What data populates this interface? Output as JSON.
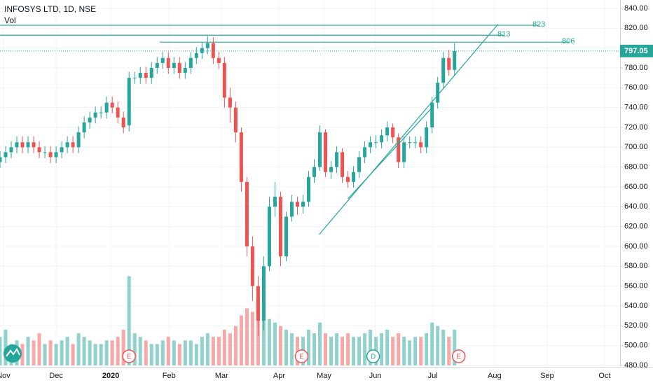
{
  "chart_data": {
    "type": "candlestick",
    "title": "INFOSYS LTD, 1D, NSE",
    "volume_label": "Vol",
    "up_color": "#26a69a",
    "down_color": "#ef5350",
    "grid": true,
    "xlim": [
      0,
      221
    ],
    "ylim": [
      480,
      840
    ],
    "y2lim": [
      0,
      100
    ],
    "xticks": [
      {
        "value": 1.25,
        "label": "Nov"
      },
      {
        "value": 20,
        "label": "Dec"
      },
      {
        "value": 39.5,
        "label": "2020"
      },
      {
        "value": 60.25,
        "label": "Feb"
      },
      {
        "value": 79,
        "label": "Mar"
      },
      {
        "value": 99.5,
        "label": "Apr"
      },
      {
        "value": 115.5,
        "label": "May"
      },
      {
        "value": 133.75,
        "label": "Jun"
      },
      {
        "value": 154.25,
        "label": "Jul"
      },
      {
        "value": 176.25,
        "label": "Aug"
      },
      {
        "value": 195,
        "label": "Sep"
      },
      {
        "value": 215.5,
        "label": "Oct"
      }
    ],
    "yticks": [
      {
        "value": 480,
        "label": "480.00"
      },
      {
        "value": 500,
        "label": "500.00"
      },
      {
        "value": 520,
        "label": "520.00"
      },
      {
        "value": 540,
        "label": "540.00"
      },
      {
        "value": 560,
        "label": "560.00"
      },
      {
        "value": 580,
        "label": "580.00"
      },
      {
        "value": 600,
        "label": "600.00"
      },
      {
        "value": 620,
        "label": "620.00"
      },
      {
        "value": 640,
        "label": "640.00"
      },
      {
        "value": 660,
        "label": "660.00"
      },
      {
        "value": 680,
        "label": "680.00"
      },
      {
        "value": 700,
        "label": "700.00"
      },
      {
        "value": 720,
        "label": "720.00"
      },
      {
        "value": 740,
        "label": "740.00"
      },
      {
        "value": 760,
        "label": "760.00"
      },
      {
        "value": 780,
        "label": "780.00"
      },
      {
        "value": 800,
        "label": "800.00"
      },
      {
        "value": 820,
        "label": "820.00"
      },
      {
        "value": 840,
        "label": "840.00"
      }
    ],
    "x": [
      0,
      2,
      4,
      6,
      8,
      10,
      12,
      14,
      16,
      18,
      20,
      22,
      24,
      26,
      28,
      30,
      32,
      34,
      36,
      38,
      40,
      42,
      44,
      46,
      48,
      50,
      52,
      54,
      56,
      58,
      60,
      62,
      64,
      66,
      68,
      70,
      72,
      74,
      76,
      78,
      80,
      82,
      84,
      86,
      88,
      90,
      92,
      94,
      96,
      98,
      100,
      102,
      104,
      106,
      108,
      110,
      112,
      114,
      116,
      118,
      120,
      122,
      124,
      126,
      128,
      130,
      132,
      134,
      136,
      138,
      140,
      142,
      144,
      146,
      148,
      150,
      152,
      154,
      156,
      158,
      160,
      162
    ],
    "open": [
      685,
      690,
      695,
      700,
      705,
      700,
      705,
      700,
      695,
      695,
      690,
      695,
      700,
      705,
      700,
      715,
      725,
      730,
      735,
      735,
      745,
      740,
      730,
      722,
      770,
      770,
      775,
      770,
      780,
      785,
      790,
      780,
      785,
      775,
      780,
      790,
      795,
      800,
      805,
      790,
      785,
      750,
      740,
      715,
      665,
      600,
      560,
      525,
      580,
      640,
      650,
      590,
      630,
      645,
      640,
      645,
      670,
      680,
      715,
      675,
      680,
      695,
      670,
      665,
      675,
      690,
      700,
      705,
      705,
      712,
      720,
      710,
      685,
      705,
      705,
      705,
      700,
      720,
      745,
      765,
      790,
      778
    ],
    "high": [
      696,
      701,
      706,
      711,
      711,
      711,
      711,
      706,
      701,
      701,
      701,
      706,
      711,
      711,
      721,
      731,
      736,
      741,
      741,
      751,
      751,
      746,
      736,
      776,
      776,
      781,
      781,
      786,
      791,
      796,
      796,
      791,
      791,
      786,
      796,
      801,
      806,
      812,
      811,
      796,
      791,
      760,
      746,
      720,
      670,
      610,
      570,
      590,
      650,
      665,
      655,
      635,
      652,
      650,
      652,
      676,
      688,
      722,
      718,
      686,
      701,
      699,
      676,
      681,
      696,
      706,
      711,
      712,
      718,
      726,
      724,
      714,
      711,
      711,
      711,
      711,
      726,
      751,
      771,
      796,
      798,
      805
    ],
    "low": [
      679,
      684,
      689,
      694,
      694,
      694,
      694,
      689,
      689,
      684,
      684,
      689,
      694,
      694,
      694,
      709,
      719,
      724,
      729,
      729,
      734,
      724,
      714,
      716,
      764,
      764,
      764,
      764,
      774,
      779,
      774,
      774,
      769,
      769,
      774,
      784,
      789,
      794,
      784,
      779,
      740,
      725,
      705,
      655,
      590,
      545,
      510,
      515,
      575,
      630,
      580,
      585,
      625,
      632,
      633,
      640,
      664,
      676,
      670,
      668,
      674,
      664,
      659,
      659,
      669,
      684,
      694,
      699,
      699,
      706,
      704,
      679,
      679,
      699,
      699,
      694,
      694,
      714,
      739,
      759,
      772,
      772
    ],
    "close": [
      690,
      695,
      700,
      705,
      700,
      705,
      700,
      695,
      695,
      690,
      695,
      700,
      705,
      700,
      715,
      725,
      730,
      735,
      735,
      745,
      740,
      730,
      720,
      770,
      770,
      775,
      770,
      780,
      785,
      790,
      780,
      785,
      775,
      780,
      790,
      795,
      800,
      805,
      790,
      785,
      750,
      740,
      715,
      665,
      600,
      560,
      525,
      580,
      640,
      650,
      590,
      630,
      645,
      640,
      645,
      670,
      680,
      715,
      675,
      680,
      695,
      670,
      665,
      675,
      690,
      700,
      705,
      705,
      712,
      720,
      710,
      685,
      705,
      705,
      705,
      700,
      720,
      745,
      765,
      790,
      778,
      797.05
    ],
    "volume": [
      8,
      10,
      6,
      7,
      6,
      8,
      7,
      9,
      6,
      7,
      6,
      7,
      8,
      6,
      9,
      8,
      7,
      6,
      6,
      7,
      7,
      8,
      10,
      25,
      9,
      8,
      7,
      6,
      6,
      7,
      8,
      7,
      6,
      7,
      7,
      6,
      8,
      9,
      8,
      8,
      10,
      9,
      11,
      14,
      16,
      15,
      18,
      17,
      13,
      12,
      11,
      10,
      9,
      8,
      8,
      10,
      9,
      12,
      9,
      8,
      9,
      8,
      9,
      8,
      8,
      9,
      10,
      8,
      9,
      10,
      8,
      9,
      8,
      7,
      8,
      8,
      9,
      12,
      11,
      10,
      8,
      10
    ],
    "levels": [
      823,
      813,
      806
    ],
    "level_color": "#26a69a",
    "trendlines": [
      {
        "x": [
          113.75,
          177.5
        ],
        "y": [
          612,
          824
        ]
      },
      {
        "x": [
          124,
          154
        ],
        "y": [
          648,
          740
        ]
      }
    ],
    "events": [
      {
        "label": "E",
        "x": 46
      },
      {
        "label": "E",
        "x": 107.5
      },
      {
        "label": "D",
        "x": 133
      },
      {
        "label": "E",
        "x": 163.5
      }
    ]
  }
}
